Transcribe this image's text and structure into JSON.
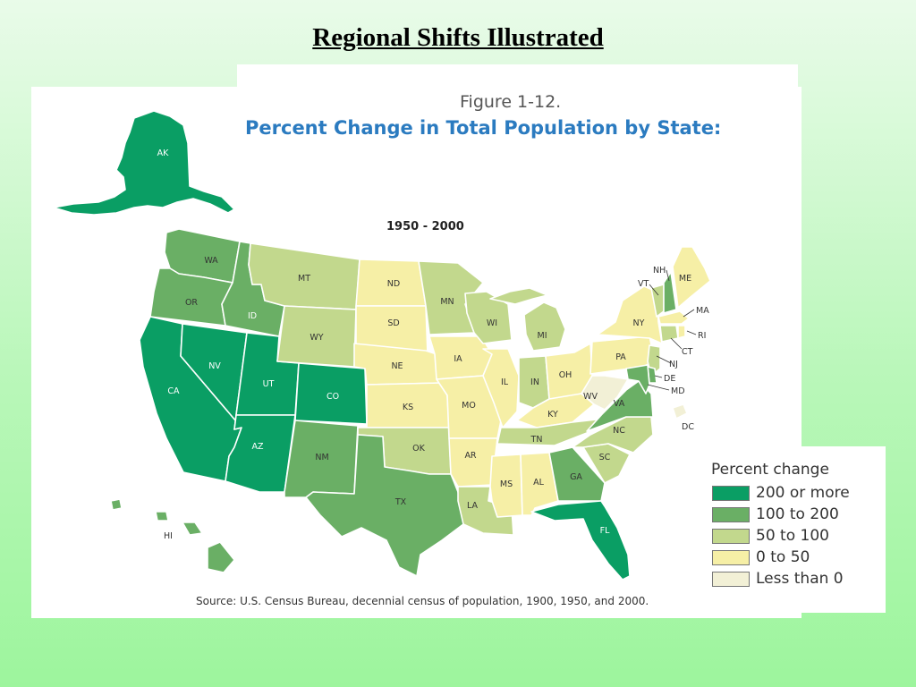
{
  "slide": {
    "title": "Regional Shifts Illustrated"
  },
  "figure": {
    "number": "Figure 1-12.",
    "title": "Percent Change in Total Population by State:",
    "period": "1950 - 2000",
    "source": "Source:  U.S. Census Bureau, decennial census of population, 1900, 1950, and 2000."
  },
  "colors": {
    "200 or more": "#0a9e64",
    "100 to 200": "#6aaf65",
    "50 to 100": "#c2d88d",
    "0 to 50": "#f6efa6",
    "Less than 0": "#f2f0d6"
  },
  "legend": {
    "title": "Percent change",
    "items": [
      {
        "label": "200 or more",
        "color": "#0a9e64"
      },
      {
        "label": "100 to 200",
        "color": "#6aaf65"
      },
      {
        "label": "50 to 100",
        "color": "#c2d88d"
      },
      {
        "label": "0 to 50",
        "color": "#f6efa6"
      },
      {
        "label": "Less than 0",
        "color": "#f2f0d6"
      }
    ]
  },
  "states": {
    "AK": "200 or more",
    "WA": "100 to 200",
    "OR": "100 to 200",
    "CA": "200 or more",
    "ID": "100 to 200",
    "NV": "200 or more",
    "UT": "200 or more",
    "AZ": "200 or more",
    "MT": "50 to 100",
    "WY": "50 to 100",
    "CO": "200 or more",
    "NM": "100 to 200",
    "ND": "0 to 50",
    "SD": "0 to 50",
    "NE": "0 to 50",
    "KS": "0 to 50",
    "OK": "50 to 100",
    "TX": "100 to 200",
    "MN": "50 to 100",
    "IA": "0 to 50",
    "MO": "0 to 50",
    "AR": "0 to 50",
    "LA": "50 to 100",
    "WI": "50 to 100",
    "IL": "0 to 50",
    "MS": "0 to 50",
    "MI": "50 to 100",
    "IN": "50 to 100",
    "OH": "0 to 50",
    "KY": "0 to 50",
    "TN": "50 to 100",
    "AL": "0 to 50",
    "GA": "100 to 200",
    "FL": "200 or more",
    "SC": "50 to 100",
    "NC": "50 to 100",
    "VA": "100 to 200",
    "WV": "Less than 0",
    "PA": "0 to 50",
    "NY": "0 to 50",
    "VT": "50 to 100",
    "NH": "100 to 200",
    "ME": "0 to 50",
    "MA": "0 to 50",
    "RI": "0 to 50",
    "CT": "50 to 100",
    "NJ": "50 to 100",
    "DE": "100 to 200",
    "MD": "100 to 200",
    "DC": "Less than 0",
    "HI": "100 to 200"
  }
}
